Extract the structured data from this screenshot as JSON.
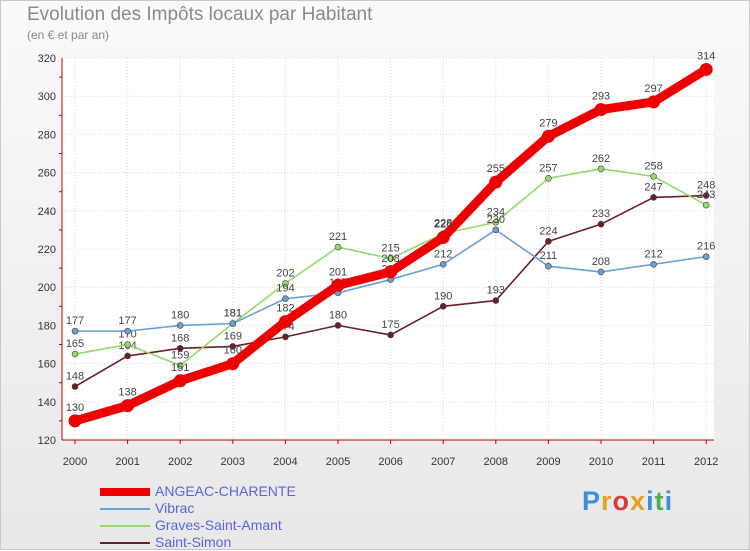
{
  "header": {
    "title": "Evolution des Impôts locaux par Habitant",
    "subtitle": "(en € et par an)"
  },
  "logo": {
    "letters": [
      "P",
      "r",
      "o",
      "x",
      "i",
      "t",
      "i"
    ],
    "colors": [
      "#3a8fd6",
      "#e8a020",
      "#d63a3a",
      "#e8a020",
      "#3a8fd6",
      "#50b050",
      "#3a8fd6"
    ]
  },
  "chart_data": {
    "type": "line",
    "title": "Evolution des Impôts locaux par Habitant",
    "subtitle": "(en € et par an)",
    "x": [
      "2000",
      "2001",
      "2002",
      "2003",
      "2004",
      "2005",
      "2006",
      "2007",
      "2008",
      "2009",
      "2010",
      "2011",
      "2012"
    ],
    "ylim": [
      120,
      320
    ],
    "yticks": [
      "120",
      "140",
      "160",
      "180",
      "200",
      "220",
      "240",
      "260",
      "280",
      "300",
      "320"
    ],
    "grid": true,
    "legend_position": "bottom-left",
    "series": [
      {
        "name": "Saint-Simon",
        "color": "#6b1f24",
        "values": [
          148,
          164,
          168,
          169,
          174,
          180,
          175,
          190,
          193,
          224,
          233,
          247,
          248
        ]
      },
      {
        "name": "Graves-Saint-Amant",
        "color": "#95d86c",
        "values": [
          165,
          170,
          159,
          181,
          202,
          221,
          215,
          228,
          234,
          257,
          262,
          258,
          243
        ]
      },
      {
        "name": "Vibrac",
        "color": "#6a9fd0",
        "values": [
          177,
          177,
          180,
          181,
          194,
          197,
          204,
          212,
          230,
          211,
          208,
          212,
          216
        ]
      },
      {
        "name": "ANGEAC-CHARENTE",
        "color": "#ee0000",
        "values": [
          130,
          138,
          151,
          160,
          182,
          201,
          208,
          226,
          255,
          279,
          293,
          297,
          314
        ]
      }
    ]
  }
}
